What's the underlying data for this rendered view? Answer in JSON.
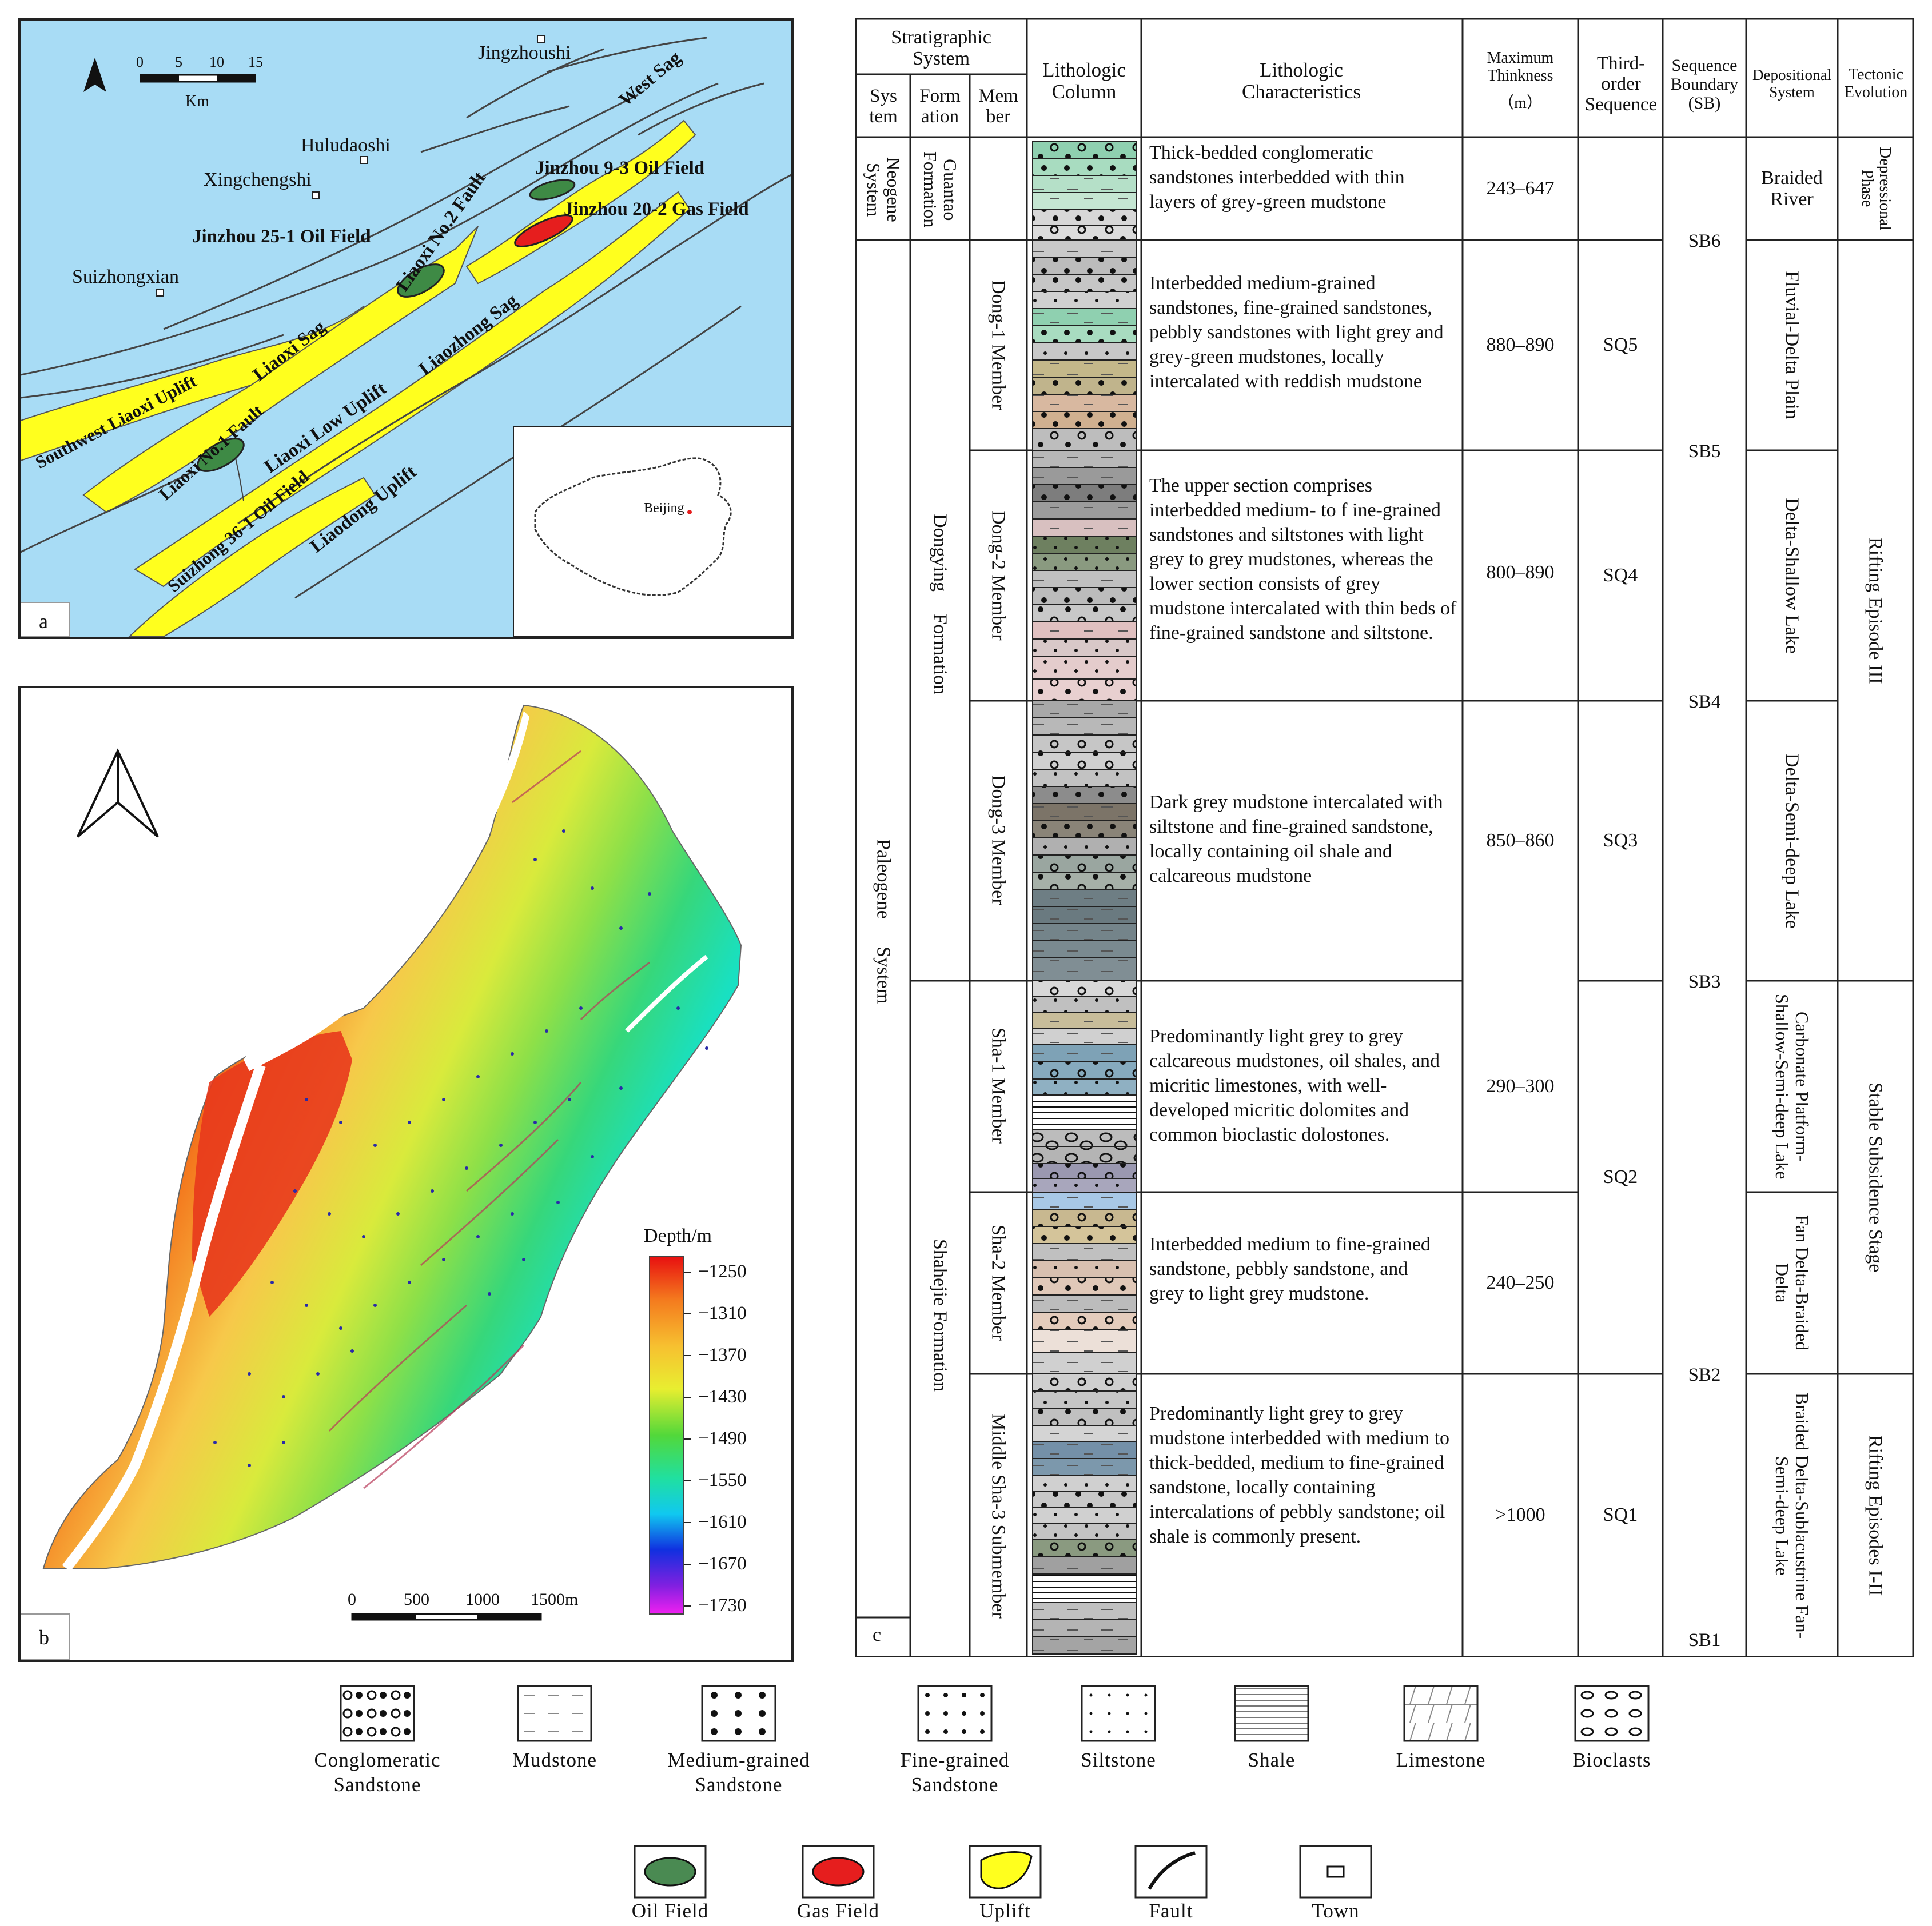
{
  "panel_a": {
    "label": "a",
    "scale": {
      "ticks": [
        "0",
        "5",
        "10",
        "15"
      ],
      "unit": "Km"
    },
    "labels": {
      "jingzhoushi": "Jingzhoushi",
      "huludaoshi": "Huludaoshi",
      "xingchengshi": "Xingchengshi",
      "suizhongxian": "Suizhongxian",
      "west_sag": "West Sag",
      "jinzhou93": "Jinzhou 9-3 Oil Field",
      "jinzhou202": "Jinzhou 20-2 Gas Field",
      "jinzhou251": "Jinzhou 25-1 Oil Field",
      "liaoxi_no2": "Liaoxi No.2 Fault",
      "liaozhong_sag": "Liaozhong Sag",
      "liaoxi_sag": "Liaoxi Sag",
      "sw_liaoxi_uplift": "Southwest Liaoxi Uplift",
      "liaoxi_low_uplift": "Liaoxi Low Uplift",
      "liaoxi_no1": "Liaoxi No.1 Fault",
      "suizhong361": "Suizhong 36-1 Oil Field",
      "liaodong_uplift": "Liaodong Uplift",
      "beijing": "Beijing"
    },
    "colors": {
      "sea": "#a8dcf5",
      "uplift": "#ffff1e",
      "oil": "#3e8a45",
      "gas": "#e61e1e"
    }
  },
  "panel_b": {
    "label": "b",
    "colorbar": {
      "title": "Depth/m",
      "ticks": [
        "−1250",
        "−1310",
        "−1370",
        "−1430",
        "−1490",
        "−1550",
        "−1610",
        "−1670",
        "−1730"
      ]
    },
    "scale": {
      "ticks": [
        "0",
        "500",
        "1000",
        "1500m"
      ]
    }
  },
  "panel_c": {
    "label": "c",
    "headers": {
      "strat_system": "Stratigraphic System",
      "sys": "Sys tem",
      "formation": "Form ation",
      "member": "Mem ber",
      "litho_column": "Lithologic Column",
      "litho_char": "Lithologic Characteristics",
      "max_thick": "Maximum Thinkness",
      "max_thick_unit": "（m）",
      "third_order": "Third-order Sequence",
      "seq_boundary": "Sequence Boundary (SB)",
      "depositional": "Depositional System",
      "tectonic": "Tectonic Evolution"
    },
    "systems": {
      "neogene": "Neogene System",
      "paleogene": "Paleogene System"
    },
    "formations": {
      "guantao": "Guantao Formation",
      "dongying": "Dongying Formation",
      "shahejie": "Shahejie Formation"
    },
    "members": [
      "Dong-1 Member",
      "Dong-2 Member",
      "Dong-3 Member",
      "Sha-1 Member",
      "Sha-2 Member",
      "Middle Sha-3 Submember"
    ],
    "rows": [
      {
        "desc": "Thick-bedded conglomeratic sandstones interbedded with thin layers of grey-green mudstone",
        "thick": "243–647",
        "seq": ""
      },
      {
        "desc": "Interbedded medium-grained sandstones, fine-grained sandstones, pebbly sandstones with light grey and grey-green mudstones, locally intercalated with reddish mudstone",
        "thick": "880–890",
        "seq": "SQ5"
      },
      {
        "desc": "The upper section comprises interbedded medium- to f ine-grained sandstones and siltstones with light grey to grey mudstones, whereas the lower section consists of grey mudstone intercalated with thin beds of fine-grained sandstone and siltstone.",
        "thick": "800–890",
        "seq": "SQ4"
      },
      {
        "desc": "Dark grey mudstone intercalated with siltstone and fine-grained sandstone, locally containing oil shale and calcareous mudstone",
        "thick": "850–860",
        "seq": "SQ3"
      },
      {
        "desc": "Predominantly light grey to grey calcareous mudstones, oil shales, and micritic limestones, with well-developed micritic dolomites and common bioclastic dolostones.",
        "thick": "290–300",
        "seq": ""
      },
      {
        "desc": "Interbedded medium to fine-grained sandstone, pebbly sandstone, and grey to light grey mudstone.",
        "thick": "240–250",
        "seq": ""
      },
      {
        "desc": "Predominantly light grey to grey mudstone interbedded with medium to thick-bedded, medium to fine-grained sandstone, locally containing intercalations of pebbly sandstone; oil shale is commonly present.",
        "thick": ">1000",
        "seq": "SQ1"
      }
    ],
    "sq2": "SQ2",
    "boundaries": [
      "SB6",
      "SB5",
      "SB4",
      "SB3",
      "SB2",
      "SB1"
    ],
    "depositional": [
      "Braided River",
      "Fluvial-Delta Plain",
      "Delta-Shallow Lake",
      "Delta-Semi-deep Lake",
      "Carbonate Platform-Shallow-Semi-deep Lake",
      "Fan Delta-Braided Delta",
      "Braided Delta-Sublacustrine Fan-Semi-deep Lake"
    ],
    "tectonic": [
      "Depressional Phase",
      "Rifting Episode III",
      "Stable Subsidence Stage",
      "Rifting Episodes I-II"
    ]
  },
  "legend": {
    "row1": [
      "Conglomeratic Sandstone",
      "Mudstone",
      "Medium-grained Sandstone",
      "Fine-grained Sandstone",
      "Siltstone",
      "Shale",
      "Limestone",
      "Bioclasts"
    ],
    "row2": [
      "Oil Field",
      "Gas Field",
      "Uplift",
      "Fault",
      "Town"
    ]
  }
}
